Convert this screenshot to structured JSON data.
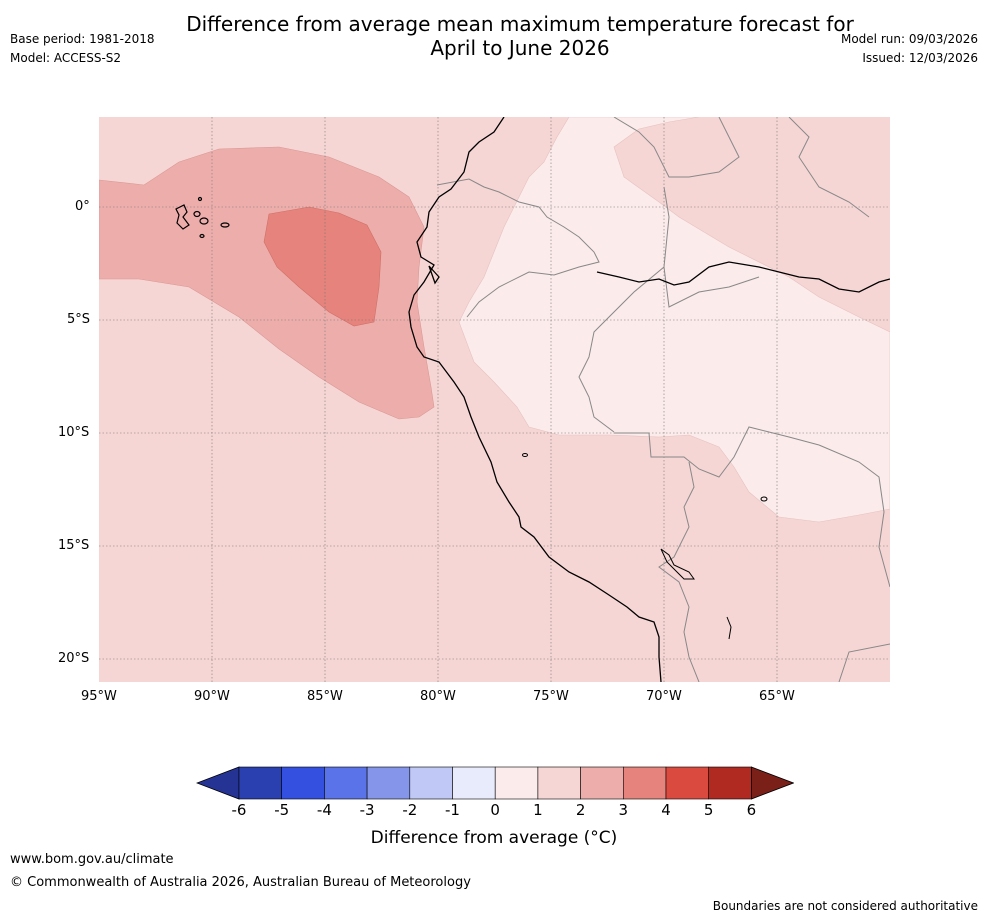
{
  "title": {
    "line1": "Difference from average mean maximum temperature forecast for",
    "line2": "April to June 2026"
  },
  "meta": {
    "base_period": "Base period: 1981-2018",
    "model": "Model: ACCESS-S2",
    "model_run": "Model run: 09/03/2026",
    "issued": "Issued: 12/03/2026"
  },
  "map": {
    "lat_labels": [
      "0°",
      "5°S",
      "10°S",
      "15°S",
      "20°S"
    ],
    "lon_labels": [
      "95°W",
      "90°W",
      "85°W",
      "80°W",
      "75°W",
      "70°W",
      "65°W"
    ],
    "colors": {
      "ocean_base": "#f5d6d4",
      "anomaly_1_2": "#f5d6d4",
      "anomaly_0_1": "#fbebea",
      "anomaly_2_3": "#edaeab",
      "anomaly_3_4": "#e6837c",
      "coastline": "#000000",
      "borders": "#888888",
      "grid": "#888888"
    }
  },
  "colorbar": {
    "ticks": [
      "-6",
      "-5",
      "-4",
      "-3",
      "-2",
      "-1",
      "0",
      "1",
      "2",
      "3",
      "4",
      "5",
      "6"
    ],
    "colors": [
      "#253494",
      "#2a3fb0",
      "#3450e0",
      "#5b73e8",
      "#8596ea",
      "#c0c8f5",
      "#e8ebfb",
      "#fbebea",
      "#f5d6d4",
      "#edaeab",
      "#e6837c",
      "#db4a3f",
      "#b02a22",
      "#7a2019"
    ],
    "label": "Difference from average (°C)"
  },
  "footer": {
    "url": "www.bom.gov.au/climate",
    "copyright": "© Commonwealth of Australia 2026, Australian Bureau of Meteorology",
    "disclaimer": "Boundaries are not considered authoritative"
  }
}
